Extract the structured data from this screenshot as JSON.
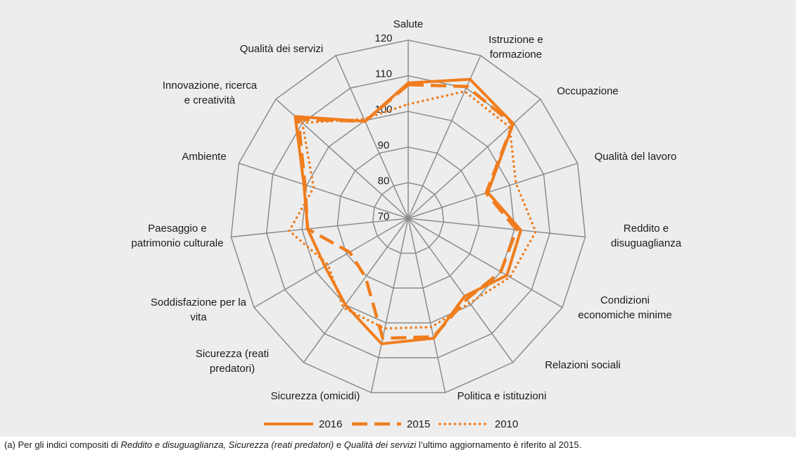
{
  "chart_data": {
    "type": "radar",
    "categories": [
      [
        "Salute"
      ],
      [
        "Istruzione e",
        "formazione"
      ],
      [
        "Occupazione"
      ],
      [
        "Qualità del lavoro"
      ],
      [
        "Reddito e",
        "disuguaglianza"
      ],
      [
        "Condizioni",
        "economiche minime"
      ],
      [
        "Relazioni sociali"
      ],
      [
        "Politica e istituzioni"
      ],
      [
        "Sicurezza (omicidi)"
      ],
      [
        "Sicurezza (reati",
        "predatori)"
      ],
      [
        "Soddisfazione per la",
        "vita"
      ],
      [
        "Paesaggio e",
        "patrimonio culturale"
      ],
      [
        "Ambiente"
      ],
      [
        "Innovazione, ricerca",
        "e creatività"
      ],
      [
        "Qualità dei servizi"
      ]
    ],
    "series": [
      {
        "name": "2016",
        "color": "#f07d1e",
        "style": "solid",
        "values": [
          108,
          112.7,
          109.7,
          93.5,
          101.8,
          102,
          97,
          104.4,
          106,
          100,
          97,
          98.4,
          100.8,
          112.7,
          99.8
        ]
      },
      {
        "name": "2015",
        "color": "#f07d1e",
        "style": "dashed",
        "values": [
          107.5,
          110.5,
          109.5,
          93,
          100.6,
          100,
          98,
          104,
          104.4,
          90.4,
          89,
          98.4,
          100.5,
          111.5,
          99.8
        ]
      },
      {
        "name": "2010",
        "color": "#f07d1e",
        "style": "dotted",
        "values": [
          102,
          109,
          108.3,
          101.8,
          106,
          103,
          99.4,
          101.2,
          101.6,
          101,
          96,
          103.6,
          97.9,
          110,
          100.5
        ]
      }
    ],
    "rlim": [
      70,
      120
    ],
    "rticks": [
      70,
      80,
      90,
      100,
      110,
      120
    ],
    "grid": true,
    "legend": "bottom",
    "note": [
      "(a) Per gli indici compositi di ",
      "Reddito e disuguaglianza, Sicurezza (reati predatori)",
      " e ",
      "Qualità dei servizi",
      " l’ultimo aggiornamento è riferito al 2015."
    ]
  }
}
